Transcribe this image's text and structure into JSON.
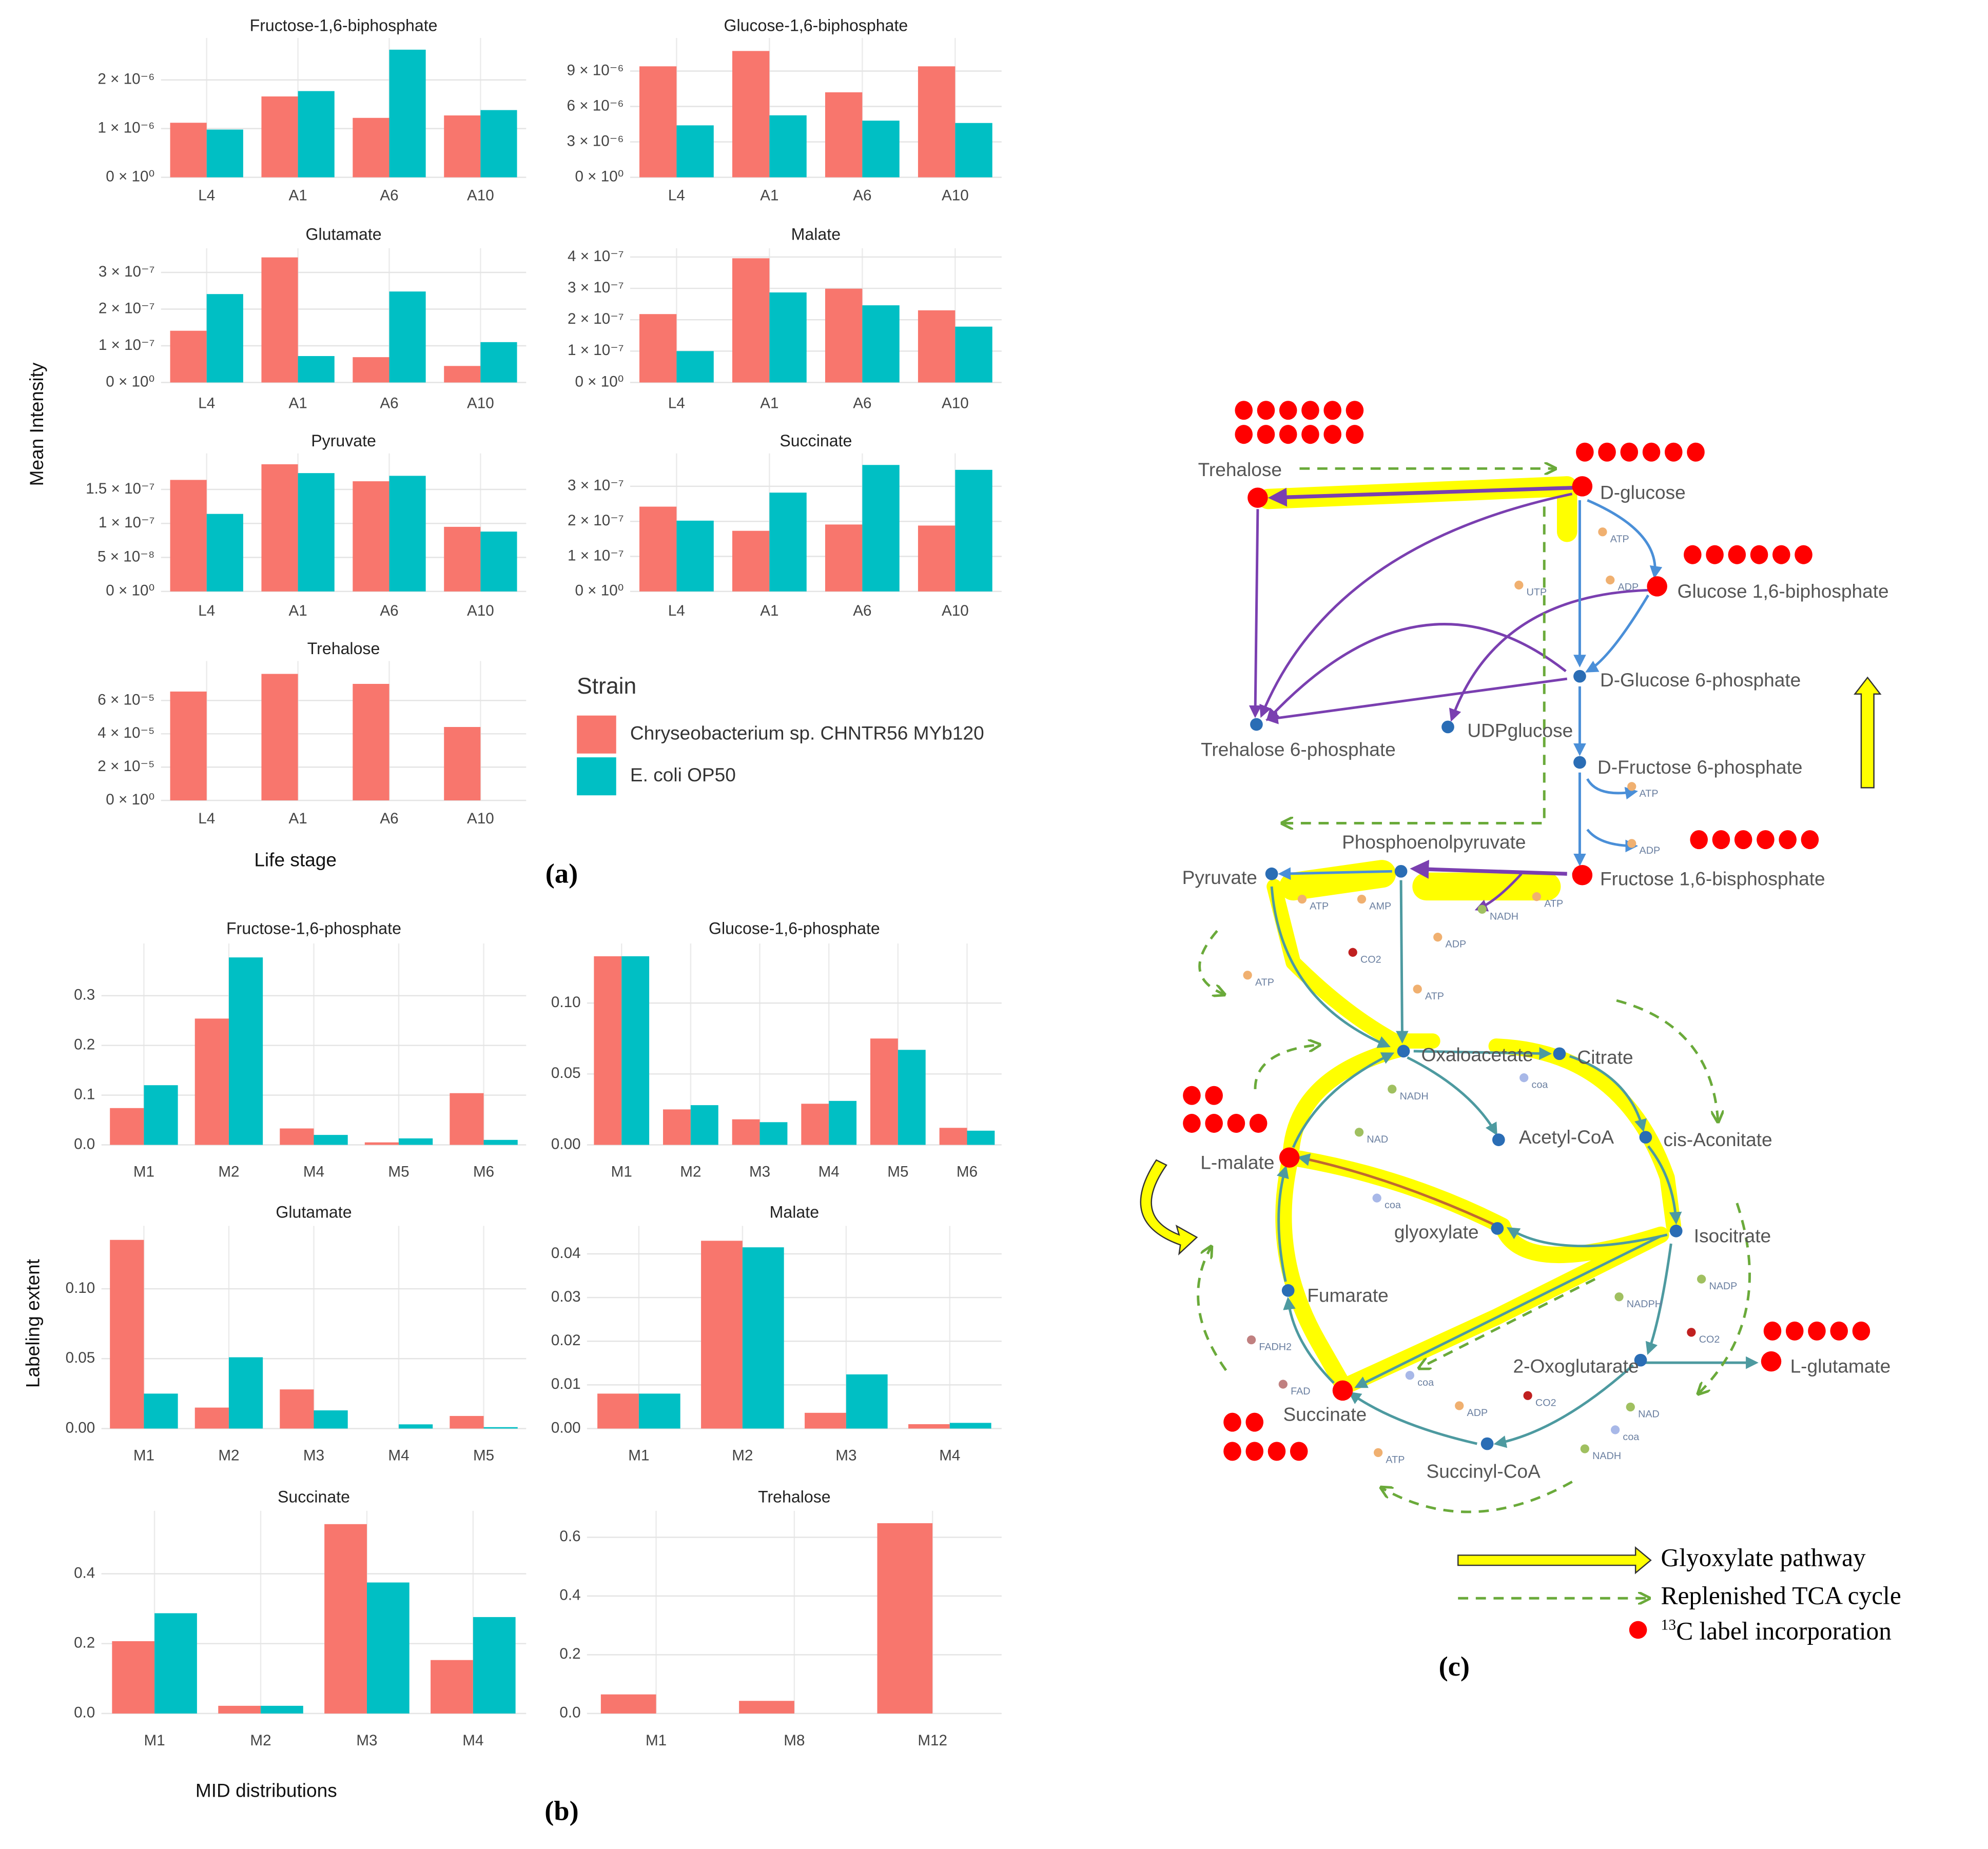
{
  "chart_data": [
    {
      "type": "bar",
      "title": "Fructose-1,6-biphosphate",
      "categories": [
        "L4",
        "A1",
        "A6",
        "A10"
      ],
      "series": [
        {
          "values": [
            1.12e-06,
            1.66e-06,
            1.22e-06,
            1.27e-06
          ]
        },
        {
          "values": [
            9.8e-07,
            1.77e-06,
            2.62e-06,
            1.38e-06
          ]
        }
      ],
      "ylim": [
        0,
        2.86e-06
      ],
      "yticks": [
        {
          "value": 0,
          "label": "0 × 10⁰"
        },
        {
          "value": 1e-06,
          "label": "1 × 10⁻⁶"
        },
        {
          "value": 2e-06,
          "label": "2 × 10⁻⁶"
        }
      ],
      "grid": true
    },
    {
      "type": "bar",
      "title": "Glucose-1,6-biphosphate",
      "categories": [
        "L4",
        "A1",
        "A6",
        "A10"
      ],
      "series": [
        {
          "values": [
            9.4e-06,
            1.07e-05,
            7.2e-06,
            9.4e-06
          ]
        },
        {
          "values": [
            4.4e-06,
            5.25e-06,
            4.8e-06,
            4.6e-06
          ]
        }
      ],
      "ylim": [
        0,
        1.18e-05
      ],
      "yticks": [
        {
          "value": 0,
          "label": "0 × 10⁰"
        },
        {
          "value": 3e-06,
          "label": "3 × 10⁻⁶"
        },
        {
          "value": 6e-06,
          "label": "6 × 10⁻⁶"
        },
        {
          "value": 9e-06,
          "label": "9 × 10⁻⁶"
        }
      ],
      "grid": true
    },
    {
      "type": "bar",
      "title": "Glutamate",
      "categories": [
        "L4",
        "A1",
        "A6",
        "A10"
      ],
      "series": [
        {
          "values": [
            1.41e-07,
            3.41e-07,
            6.9e-08,
            4.5e-08
          ]
        },
        {
          "values": [
            2.41e-07,
            7.2e-08,
            2.48e-07,
            1.1e-07
          ]
        }
      ],
      "ylim": [
        0,
        3.66e-07
      ],
      "yticks": [
        {
          "value": 0,
          "label": "0 × 10⁰"
        },
        {
          "value": 1e-07,
          "label": "1 × 10⁻⁷"
        },
        {
          "value": 2e-07,
          "label": "2 × 10⁻⁷"
        },
        {
          "value": 3e-07,
          "label": "3 × 10⁻⁷"
        }
      ],
      "grid": true
    },
    {
      "type": "bar",
      "title": "Malate",
      "categories": [
        "L4",
        "A1",
        "A6",
        "A10"
      ],
      "series": [
        {
          "values": [
            2.18e-07,
            3.96e-07,
            2.99e-07,
            2.3e-07
          ]
        },
        {
          "values": [
            1e-07,
            2.87e-07,
            2.46e-07,
            1.78e-07
          ]
        }
      ],
      "ylim": [
        0,
        4.28e-07
      ],
      "yticks": [
        {
          "value": 0,
          "label": "0 × 10⁰"
        },
        {
          "value": 1e-07,
          "label": "1 × 10⁻⁷"
        },
        {
          "value": 2e-07,
          "label": "2 × 10⁻⁷"
        },
        {
          "value": 3e-07,
          "label": "3 × 10⁻⁷"
        },
        {
          "value": 4e-07,
          "label": "4 × 10⁻⁷"
        }
      ],
      "grid": true
    },
    {
      "type": "bar",
      "title": "Pyruvate",
      "categories": [
        "L4",
        "A1",
        "A6",
        "A10"
      ],
      "series": [
        {
          "values": [
            1.64e-07,
            1.87e-07,
            1.62e-07,
            9.5e-08
          ]
        },
        {
          "values": [
            1.14e-07,
            1.74e-07,
            1.7e-07,
            8.8e-08
          ]
        }
      ],
      "ylim": [
        0,
        2.03e-07
      ],
      "yticks": [
        {
          "value": 0,
          "label": "0 × 10⁰"
        },
        {
          "value": 5e-08,
          "label": "5 × 10⁻⁸"
        },
        {
          "value": 1e-07,
          "label": "1 × 10⁻⁷"
        },
        {
          "value": 1.5e-07,
          "label": "1.5 × 10⁻⁷"
        }
      ],
      "grid": true
    },
    {
      "type": "bar",
      "title": "Succinate",
      "categories": [
        "L4",
        "A1",
        "A6",
        "A10"
      ],
      "series": [
        {
          "values": [
            2.42e-07,
            1.73e-07,
            1.91e-07,
            1.88e-07
          ]
        },
        {
          "values": [
            2.02e-07,
            2.82e-07,
            3.61e-07,
            3.47e-07
          ]
        }
      ],
      "ylim": [
        0,
        3.94e-07
      ],
      "yticks": [
        {
          "value": 0,
          "label": "0 × 10⁰"
        },
        {
          "value": 1e-07,
          "label": "1 × 10⁻⁷"
        },
        {
          "value": 2e-07,
          "label": "2 × 10⁻⁷"
        },
        {
          "value": 3e-07,
          "label": "3 × 10⁻⁷"
        }
      ],
      "grid": true
    },
    {
      "type": "bar",
      "title": "Trehalose",
      "categories": [
        "L4",
        "A1",
        "A6",
        "A10"
      ],
      "series": [
        {
          "values": [
            6.54e-05,
            7.6e-05,
            7e-05,
            4.41e-05
          ]
        },
        {
          "values": [
            null,
            null,
            null,
            null
          ]
        }
      ],
      "ylim": [
        0,
        8.37e-05
      ],
      "yticks": [
        {
          "value": 0,
          "label": "0 × 10⁰"
        },
        {
          "value": 2e-05,
          "label": "2 × 10⁻⁵"
        },
        {
          "value": 4e-05,
          "label": "4 × 10⁻⁵"
        },
        {
          "value": 6e-05,
          "label": "6 × 10⁻⁵"
        }
      ],
      "grid": true
    },
    {
      "type": "bar",
      "title": "Fructose-1,6-phosphate",
      "categories": [
        "M1",
        "M2",
        "M4",
        "M5",
        "M6"
      ],
      "series": [
        {
          "values": [
            0.074,
            0.254,
            0.033,
            0.005,
            0.104
          ]
        },
        {
          "values": [
            0.12,
            0.377,
            0.02,
            0.013,
            0.01
          ]
        }
      ],
      "ylim": [
        0,
        0.405
      ],
      "yticks": [
        {
          "value": 0,
          "label": "0.0"
        },
        0.1,
        0.2,
        0.3
      ],
      "grid": true
    },
    {
      "type": "bar",
      "title": "Glucose-1,6-phosphate",
      "categories": [
        "M1",
        "M2",
        "M3",
        "M4",
        "M5",
        "M6"
      ],
      "series": [
        {
          "values": [
            0.133,
            0.025,
            0.018,
            0.029,
            0.075,
            0.012
          ]
        },
        {
          "values": [
            0.133,
            0.028,
            0.016,
            0.031,
            0.067,
            0.01
          ]
        }
      ],
      "ylim": [
        0,
        0.142
      ],
      "yticks": [
        {
          "value": 0,
          "label": "0.00"
        },
        0.05,
        {
          "value": 0.1,
          "label": "0.10"
        }
      ],
      "grid": true
    },
    {
      "type": "bar",
      "title": "Glutamate",
      "categories": [
        "M1",
        "M2",
        "M3",
        "M4",
        "M5"
      ],
      "series": [
        {
          "values": [
            0.135,
            0.015,
            0.028,
            0,
            0.009
          ]
        },
        {
          "values": [
            0.025,
            0.051,
            0.013,
            0.003,
            0.001
          ]
        }
      ],
      "ylim": [
        0,
        0.145
      ],
      "yticks": [
        {
          "value": 0,
          "label": "0.00"
        },
        0.05,
        {
          "value": 0.1,
          "label": "0.10"
        }
      ],
      "grid": true
    },
    {
      "type": "bar",
      "title": "Malate",
      "categories": [
        "M1",
        "M2",
        "M3",
        "M4"
      ],
      "series": [
        {
          "values": [
            0.008,
            0.043,
            0.0036,
            0.001
          ]
        },
        {
          "values": [
            0.008,
            0.0415,
            0.0124,
            0.0013
          ]
        }
      ],
      "ylim": [
        0,
        0.0464
      ],
      "yticks": [
        {
          "value": 0,
          "label": "0.00"
        },
        0.01,
        0.02,
        0.03,
        0.04
      ],
      "grid": true
    },
    {
      "type": "bar",
      "title": "Succinate",
      "categories": [
        "M1",
        "M2",
        "M3",
        "M4"
      ],
      "series": [
        {
          "values": [
            0.207,
            0.022,
            0.542,
            0.153
          ]
        },
        {
          "values": [
            0.287,
            0.022,
            0.375,
            0.276
          ]
        }
      ],
      "ylim": [
        0,
        0.58
      ],
      "yticks": [
        {
          "value": 0,
          "label": "0.0"
        },
        0.2,
        0.4
      ],
      "grid": true
    },
    {
      "type": "bar",
      "title": "Trehalose",
      "categories": [
        "M1",
        "M8",
        "M12"
      ],
      "series": [
        {
          "values": [
            0.065,
            0.043,
            0.648
          ]
        },
        {
          "values": [
            null,
            null,
            null
          ]
        }
      ],
      "ylim": [
        0,
        0.69
      ],
      "yticks": [
        {
          "value": 0,
          "label": "0.0"
        },
        0.2,
        0.4,
        0.6
      ],
      "grid": true
    }
  ],
  "legend": {
    "title": "Strain",
    "series": [
      {
        "name": "Chryseobacterium sp. CHNTR56 MYb120",
        "color": "#F8766D"
      },
      {
        "name": "E. coli OP50",
        "color": "#00BFC4"
      }
    ]
  },
  "panel_a": {
    "y_label": "Mean Intensity",
    "x_label": "Life stage",
    "label": "(a)"
  },
  "panel_b": {
    "y_label": "Labeling extent",
    "x_label": "MID distributions",
    "label": "(b)"
  },
  "diagram": {
    "label": "(c)",
    "nodes": [
      "Trehalose",
      "D-glucose",
      "Glucose 1,6-biphosphate",
      "D-Glucose 6-phosphate",
      "Trehalose 6-phosphate",
      "UDPglucose",
      "D-Fructose 6-phosphate",
      "Phosphoenolpyruvate",
      "Pyruvate",
      "Fructose 1,6-bisphosphate",
      "Oxaloacetate",
      "Citrate",
      "Acetyl-CoA",
      "cis-Aconitate",
      "L-malate",
      "glyoxylate",
      "Isocitrate",
      "Fumarate",
      "2-Oxoglutarate",
      "L-glutamate",
      "Succinate",
      "Succinyl-CoA"
    ],
    "cofactors": [
      "ATP",
      "ADP",
      "UTP",
      "ATP",
      "ADP",
      "ATP",
      "AMP",
      "NADH",
      "ATP",
      "ADP",
      "CO2",
      "ATP",
      "ATP",
      "NADH",
      "coa",
      "NAD",
      "coa",
      "NADP",
      "NADPH",
      "CO2",
      "FADH2",
      "FAD",
      "coa",
      "ADP",
      "CO2",
      "NAD",
      "coa",
      "NADH",
      "ATP"
    ],
    "legend": {
      "glyoxylate": "Glyoxylate pathway",
      "tca": "Replenished TCA cycle",
      "label": {
        "superscript": "13",
        "text": "C label incorporation"
      }
    }
  }
}
